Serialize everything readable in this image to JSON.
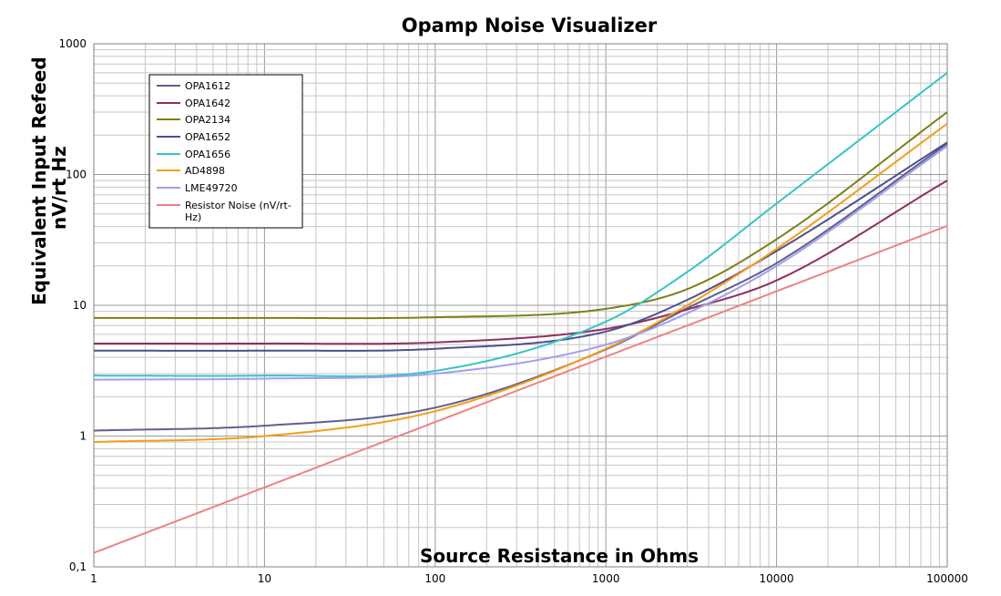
{
  "chart_data": {
    "type": "line",
    "title": "Opamp Noise Visualizer",
    "xlabel": "Source Resistance in Ohms",
    "ylabel_line1": "Equivalent Input Refeed",
    "ylabel_line2": "nV/rt Hz",
    "xscale": "log",
    "yscale": "log",
    "xlim": [
      1,
      100000
    ],
    "ylim": [
      0.1,
      1000
    ],
    "x_ticks": [
      1,
      10,
      100,
      1000,
      10000,
      100000
    ],
    "x_tick_labels": [
      "1",
      "10",
      "100",
      "1000",
      "10000",
      "100000"
    ],
    "y_ticks": [
      0.1,
      1,
      10,
      100,
      1000
    ],
    "y_tick_labels": [
      "0,1",
      "1",
      "10",
      "100",
      "1000"
    ],
    "grid": true,
    "legend_position": "top-left",
    "x": [
      1,
      10,
      100,
      1000,
      3000,
      10000,
      100000
    ],
    "series": [
      {
        "name": "OPA1612",
        "color": "#5f5f8f",
        "values": [
          1.1,
          1.2,
          1.65,
          4.6,
          9.5,
          21,
          172
        ]
      },
      {
        "name": "OPA1642",
        "color": "#8e2f5f",
        "values": [
          5.1,
          5.1,
          5.2,
          6.6,
          9.3,
          15.5,
          90
        ]
      },
      {
        "name": "OPA2134",
        "color": "#7f7f17",
        "values": [
          8.0,
          8.0,
          8.1,
          9.4,
          13.3,
          32,
          300
        ]
      },
      {
        "name": "OPA1652",
        "color": "#4f4f8f",
        "values": [
          4.5,
          4.5,
          4.65,
          6.3,
          11,
          26,
          176
        ]
      },
      {
        "name": "OPA1656",
        "color": "#37c4c4",
        "values": [
          2.9,
          2.9,
          3.15,
          7.5,
          18,
          60,
          600
        ]
      },
      {
        "name": "AD4898",
        "color": "#f59d16",
        "values": [
          0.9,
          1.0,
          1.55,
          4.65,
          10,
          27,
          245
        ]
      },
      {
        "name": "LME49720",
        "color": "#9f9fef",
        "values": [
          2.7,
          2.75,
          3.0,
          5.0,
          8.7,
          20,
          165
        ]
      },
      {
        "name": "Resistor Noise (nV/rt-Hz)",
        "color": "#f08080",
        "values": [
          0.128,
          0.405,
          1.28,
          4.05,
          7.0,
          12.8,
          40.5
        ]
      }
    ]
  }
}
